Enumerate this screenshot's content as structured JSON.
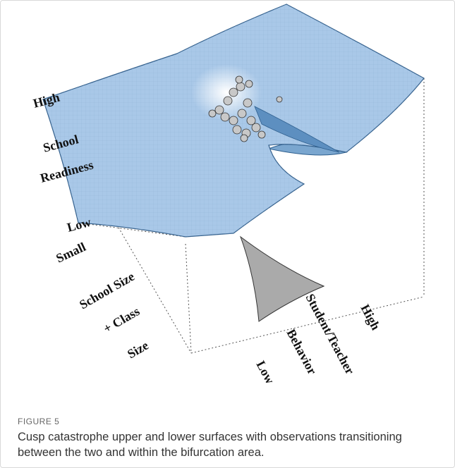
{
  "figure": {
    "axis_labels": {
      "z_high": "High",
      "z_title_1": "School",
      "z_title_2": "Readiness",
      "z_low": "Low",
      "y_small": "Small",
      "y_title_1": "School Size",
      "y_title_2": "+ Class",
      "y_title_3": "Size",
      "x_low": "Low",
      "x_title_1": "Behavior",
      "x_title_2": "Student/Teacher",
      "x_high": "High"
    },
    "caption": {
      "label": "FIGURE 5",
      "text": "Cusp catastrophe upper and lower surfaces with observations transitioning between the two and within the bifurcation area."
    }
  }
}
